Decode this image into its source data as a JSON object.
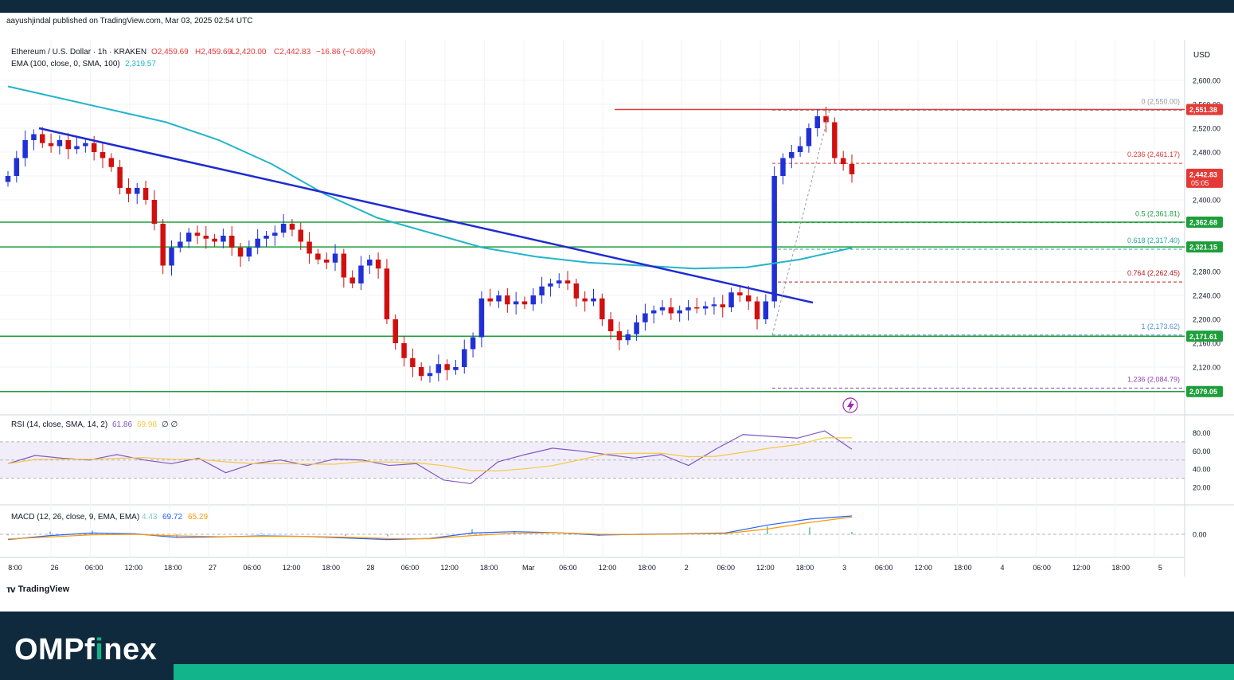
{
  "header": {
    "publisher_line": "aayushjindal published on TradingView.com, Mar 03, 2025 02:54 UTC"
  },
  "legend": {
    "symbol": "Ethereum / U.S. Dollar · 1h · KRAKEN",
    "open": "O2,459.69",
    "high": "H2,459.69",
    "low": "L2,420.00",
    "close": "C2,442.83",
    "change": "−16.86 (−0.69%)",
    "ema_label": "EMA (100, close, 0, SMA, 100)",
    "ema_value": "2,319.57"
  },
  "price_axis": {
    "currency": "USD",
    "ticks": [
      "2,600.00",
      "2,560.00",
      "2,520.00",
      "2,480.00",
      "2,440.00",
      "2,400.00",
      "2,280.00",
      "2,240.00",
      "2,200.00",
      "2,160.00",
      "2,120.00"
    ],
    "tick_values": [
      2600,
      2560,
      2520,
      2480,
      2440,
      2400,
      2280,
      2240,
      2200,
      2160,
      2120
    ]
  },
  "price_tags": [
    {
      "value": 2551.38,
      "label": "2,551.38",
      "color": "#e53935"
    },
    {
      "value": 2442.83,
      "label": "2,442.83",
      "sub": "05:05",
      "color": "#e53935"
    },
    {
      "value": 2362.68,
      "label": "2,362.68",
      "color": "#1e9e3a"
    },
    {
      "value": 2321.15,
      "label": "2,321.15",
      "color": "#1e9e3a"
    },
    {
      "value": 2171.61,
      "label": "2,171.61",
      "color": "#1e9e3a"
    },
    {
      "value": 2079.05,
      "label": "2,079.05",
      "color": "#1e9e3a"
    }
  ],
  "fib_levels": [
    {
      "ratio_label": "0 (2,550.00)",
      "value": 2550.0,
      "color": "#9598a1"
    },
    {
      "ratio_label": "0.236 (2,461.17)",
      "value": 2461.17,
      "color": "#e53935"
    },
    {
      "ratio_label": "0.5 (2,361.81)",
      "value": 2361.81,
      "color": "#1e9e3a"
    },
    {
      "ratio_label": "0.618 (2,317.40)",
      "value": 2317.4,
      "color": "#26a69a"
    },
    {
      "ratio_label": "0.764 (2,262.45)",
      "value": 2262.45,
      "color": "#b71c1c"
    },
    {
      "ratio_label": "1 (2,173.62)",
      "value": 2173.62,
      "color": "#4a90d9"
    },
    {
      "ratio_label": "1.236 (2,084.79)",
      "value": 2084.79,
      "color": "#8e44ad"
    }
  ],
  "rsi": {
    "label": "RSI (14, close, SMA, 14, 2)",
    "value": "61.86",
    "sma_value": "69.98",
    "extra": "∅ ∅",
    "ticks": [
      "80.00",
      "60.00",
      "40.00",
      "20.00"
    ],
    "tick_values": [
      80,
      60,
      40,
      20
    ]
  },
  "macd": {
    "label": "MACD (12, 26, close, 9, EMA, EMA)",
    "hist": "4.43",
    "macd_value": "69.72",
    "signal_value": "65.29",
    "ticks": [
      "0.00"
    ]
  },
  "time_axis": [
    "8:00",
    "26",
    "06:00",
    "12:00",
    "18:00",
    "27",
    "06:00",
    "12:00",
    "18:00",
    "28",
    "06:00",
    "12:00",
    "18:00",
    "Mar",
    "06:00",
    "12:00",
    "18:00",
    "2",
    "06:00",
    "12:00",
    "18:00",
    "3",
    "06:00",
    "12:00",
    "18:00",
    "4",
    "06:00",
    "12:00",
    "18:00",
    "5"
  ],
  "footer": {
    "tv_brand": "TradingView",
    "brand_prefix": "OMPf",
    "brand_accent": "i",
    "brand_suffix": "nex"
  },
  "chart_data": {
    "type": "candlestick",
    "symbol": "Ethereum / U.S. Dollar",
    "interval": "1h",
    "y_range": [
      2060,
      2630
    ],
    "resistance_line": 2551.38,
    "support_lines": [
      2362.68,
      2321.15,
      2171.61,
      2079.05
    ],
    "trend_line": {
      "from": {
        "time": "Feb 26 04:00",
        "price": 2520
      },
      "to": {
        "time": "Mar 02 17:00",
        "price": 2228
      }
    },
    "close_series": [
      2440,
      2470,
      2500,
      2510,
      2495,
      2490,
      2500,
      2485,
      2490,
      2495,
      2480,
      2470,
      2455,
      2420,
      2410,
      2420,
      2400,
      2360,
      2290,
      2320,
      2330,
      2345,
      2340,
      2335,
      2330,
      2340,
      2320,
      2305,
      2320,
      2335,
      2340,
      2345,
      2360,
      2350,
      2330,
      2310,
      2300,
      2295,
      2310,
      2270,
      2260,
      2290,
      2300,
      2285,
      2200,
      2160,
      2135,
      2120,
      2105,
      2110,
      2125,
      2115,
      2120,
      2150,
      2170,
      2235,
      2230,
      2240,
      2225,
      2230,
      2225,
      2240,
      2255,
      2260,
      2265,
      2260,
      2235,
      2230,
      2235,
      2200,
      2180,
      2165,
      2175,
      2195,
      2210,
      2215,
      2220,
      2210,
      2215,
      2220,
      2218,
      2222,
      2225,
      2220,
      2245,
      2240,
      2230,
      2200,
      2230,
      2440,
      2470,
      2480,
      2490,
      2520,
      2540,
      2530,
      2470,
      2460,
      2442.83
    ],
    "ema100_series": [
      2590,
      2570,
      2550,
      2530,
      2500,
      2460,
      2410,
      2370,
      2345,
      2320,
      2305,
      2295,
      2290,
      2285,
      2287,
      2300,
      2319.57
    ],
    "rsi_series": [
      46,
      55,
      52,
      50,
      56,
      50,
      46,
      52,
      36,
      46,
      50,
      44,
      51,
      50,
      44,
      46,
      28,
      24,
      48,
      56,
      63,
      60,
      56,
      52,
      56,
      44,
      62,
      78,
      76,
      74,
      82,
      61.86
    ],
    "macd_series": [
      -20,
      -5,
      5,
      2,
      -12,
      -10,
      -6,
      -8,
      -14,
      -20,
      -16,
      5,
      10,
      6,
      -3,
      0,
      2,
      5,
      35,
      58,
      69.72
    ],
    "signal_series": [
      -18,
      -10,
      -2,
      0,
      -6,
      -9,
      -8,
      -8,
      -11,
      -16,
      -17,
      -5,
      4,
      6,
      0,
      -1,
      1,
      3,
      20,
      45,
      65.29
    ]
  }
}
